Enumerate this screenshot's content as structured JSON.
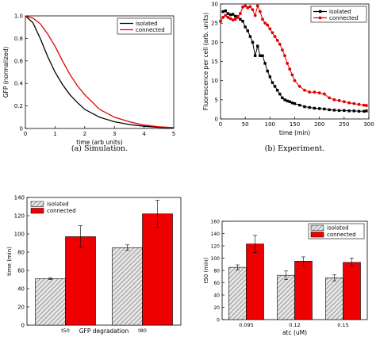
{
  "chart_data": [
    {
      "id": "a",
      "type": "line",
      "caption": "(a) Simulation.",
      "xlabel": "time (arb  units)",
      "ylabel": "GFP (normalized)",
      "xlim": [
        0,
        5
      ],
      "ylim": [
        0,
        1
      ],
      "xticks": [
        "0",
        "1",
        "2",
        "3",
        "4",
        "5"
      ],
      "yticks": [
        "0",
        "0.2",
        "0.4",
        "0.6",
        "0.8",
        "1.0"
      ],
      "legend_position": "top-right",
      "series": [
        {
          "name": "isolated",
          "color": "#000000",
          "x": [
            0,
            0.25,
            0.5,
            0.75,
            1.0,
            1.25,
            1.5,
            1.75,
            2.0,
            2.5,
            3.0,
            3.5,
            4.0,
            4.5,
            5.0
          ],
          "y": [
            1.0,
            0.94,
            0.8,
            0.64,
            0.5,
            0.39,
            0.3,
            0.23,
            0.17,
            0.1,
            0.06,
            0.035,
            0.02,
            0.01,
            0.005
          ]
        },
        {
          "name": "connected",
          "color": "#e00000",
          "x": [
            0,
            0.25,
            0.5,
            0.75,
            1.0,
            1.25,
            1.5,
            1.75,
            2.0,
            2.5,
            3.0,
            3.5,
            4.0,
            4.5,
            5.0
          ],
          "y": [
            1.0,
            0.98,
            0.93,
            0.84,
            0.73,
            0.6,
            0.48,
            0.38,
            0.3,
            0.17,
            0.1,
            0.06,
            0.03,
            0.015,
            0.008
          ]
        }
      ]
    },
    {
      "id": "b",
      "type": "line",
      "caption": "(b) Experiment.",
      "xlabel": "time (min)",
      "ylabel": "Fluorescence per cell (arb. units)",
      "xlim": [
        0,
        300
      ],
      "ylim": [
        0,
        30
      ],
      "xticks": [
        "0",
        "50",
        "100",
        "150",
        "200",
        "250",
        "300"
      ],
      "yticks": [
        "0",
        "5",
        "10",
        "15",
        "20",
        "25",
        "30"
      ],
      "legend_position": "top-right",
      "series": [
        {
          "name": "isolated",
          "color": "#000000",
          "marker": "square",
          "x": [
            5,
            10,
            15,
            20,
            25,
            30,
            35,
            40,
            45,
            50,
            55,
            60,
            65,
            70,
            75,
            80,
            85,
            90,
            95,
            100,
            105,
            110,
            115,
            120,
            125,
            130,
            135,
            140,
            145,
            150,
            160,
            170,
            180,
            190,
            200,
            210,
            220,
            230,
            240,
            250,
            260,
            270,
            280,
            290,
            295
          ],
          "y": [
            28,
            28.2,
            27.5,
            27.2,
            27.3,
            26.8,
            26.7,
            26,
            25.5,
            24,
            23,
            21.5,
            20,
            16.5,
            19,
            16.5,
            16.5,
            14.5,
            12.5,
            11,
            9.5,
            8.5,
            7.5,
            6.5,
            5.5,
            5,
            4.7,
            4.5,
            4.2,
            4,
            3.6,
            3.2,
            3,
            2.8,
            2.7,
            2.6,
            2.4,
            2.3,
            2.2,
            2.2,
            2.1,
            2.1,
            2,
            2,
            2.1
          ]
        },
        {
          "name": "connected",
          "color": "#e00000",
          "marker": "circle",
          "x": [
            0,
            5,
            10,
            15,
            20,
            25,
            30,
            35,
            40,
            45,
            50,
            55,
            60,
            65,
            70,
            75,
            80,
            85,
            90,
            95,
            100,
            105,
            110,
            115,
            120,
            125,
            130,
            135,
            140,
            145,
            150,
            160,
            170,
            180,
            190,
            200,
            210,
            220,
            230,
            240,
            250,
            260,
            270,
            280,
            290,
            295
          ],
          "y": [
            25.5,
            26.5,
            27,
            26.5,
            26.2,
            25.8,
            26,
            26.5,
            27.5,
            29.2,
            29.5,
            29,
            29.3,
            28.5,
            27,
            29.5,
            28,
            26,
            25,
            24.5,
            23.5,
            22.5,
            21.5,
            20.5,
            19.5,
            18,
            16.5,
            14.5,
            13,
            11.5,
            10,
            8.5,
            7.5,
            7,
            7,
            6.8,
            6.5,
            5.5,
            5,
            4.8,
            4.5,
            4.2,
            4,
            3.8,
            3.6,
            3.5
          ]
        }
      ]
    },
    {
      "id": "c",
      "type": "bar",
      "caption": "",
      "xlabel": "GFP degradation",
      "ylabel": "time (min)",
      "ylim": [
        0,
        140
      ],
      "yticks": [
        "0",
        "20",
        "40",
        "60",
        "80",
        "100",
        "120",
        "140"
      ],
      "categories": [
        "t50",
        "t80"
      ],
      "category_labels": [
        "t50",
        "t80"
      ],
      "legend_position": "top-left",
      "series": [
        {
          "name": "isolated",
          "color": "#d8d8d8",
          "hatch": true,
          "values": [
            51,
            85
          ],
          "errors": [
            1,
            3
          ]
        },
        {
          "name": "connected",
          "color": "#ee0000",
          "hatch": false,
          "values": [
            97,
            122
          ],
          "errors": [
            12,
            15
          ]
        }
      ]
    },
    {
      "id": "d",
      "type": "bar",
      "caption": "",
      "xlabel": "atc (uM)",
      "ylabel": "t50 (min)",
      "ylim": [
        0,
        160
      ],
      "yticks": [
        "0",
        "20",
        "40",
        "60",
        "80",
        "100",
        "120",
        "140",
        "160"
      ],
      "categories": [
        "0.095",
        "0.12",
        "0.15"
      ],
      "legend_position": "top-right",
      "series": [
        {
          "name": "isolated",
          "color": "#d8d8d8",
          "hatch": true,
          "values": [
            85,
            72,
            68
          ],
          "errors": [
            4,
            7,
            5
          ]
        },
        {
          "name": "connected",
          "color": "#ee0000",
          "hatch": false,
          "values": [
            123,
            95,
            93
          ],
          "errors": [
            14,
            7,
            7
          ]
        }
      ]
    }
  ]
}
